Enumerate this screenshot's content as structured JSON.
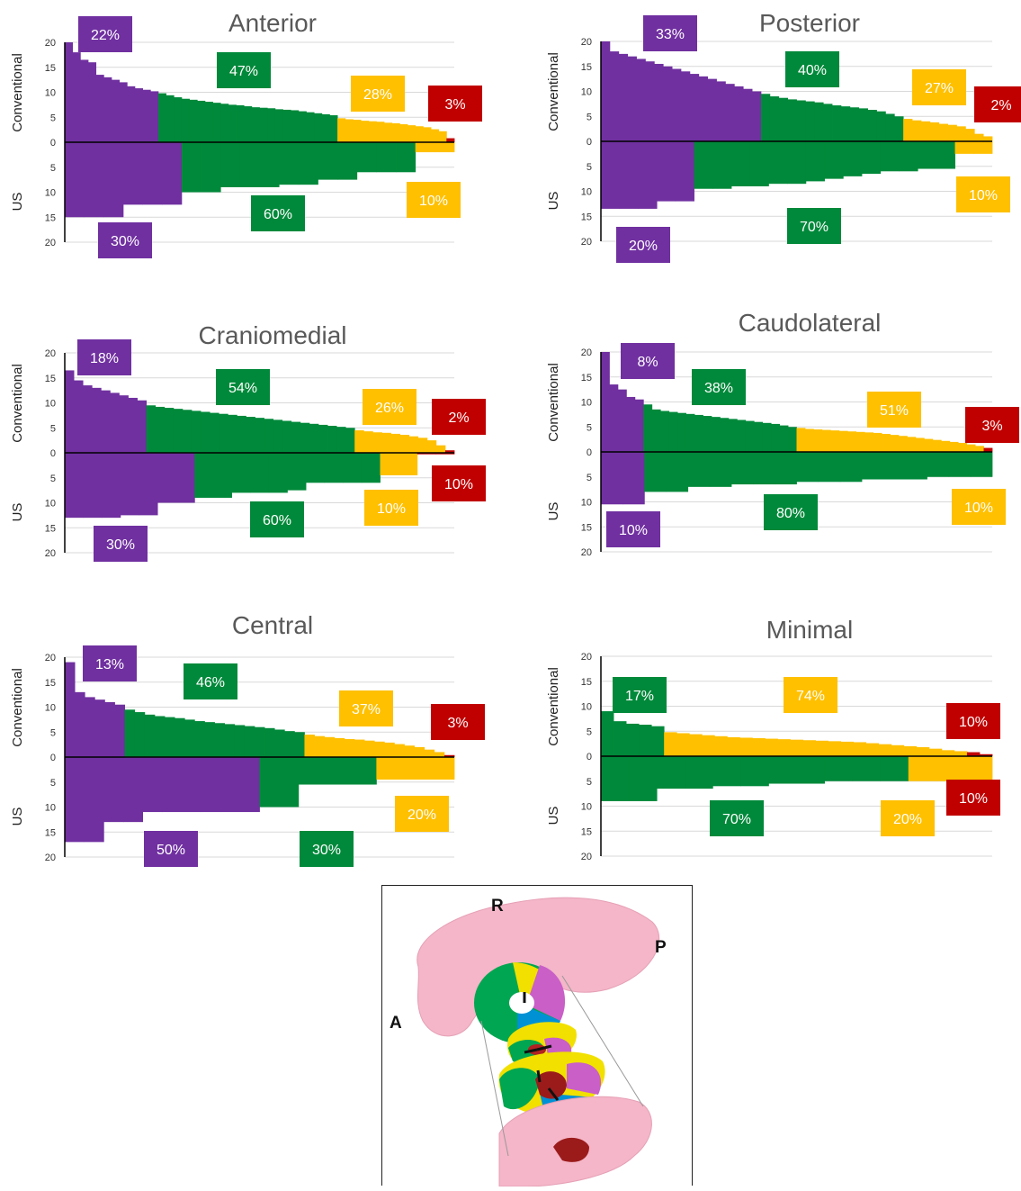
{
  "colors": {
    "purple": "#7030A0",
    "green": "#00893A",
    "yellow": "#FFC000",
    "red": "#C00000",
    "title": "#595959",
    "axis_text": "#333333",
    "grid": "#D9D9D9"
  },
  "axis_labels": {
    "top": "Conventional",
    "bottom": "US"
  },
  "chart_data": [
    {
      "type": "bar",
      "title": "Anterior",
      "ylim_top": [
        0,
        20
      ],
      "ylim_bottom": [
        0,
        20
      ],
      "yticks": [
        "20",
        "15",
        "10",
        "5",
        "0",
        "5",
        "10",
        "15",
        "20"
      ],
      "top": {
        "groups": [
          {
            "color": "purple",
            "pct": "22%",
            "values": [
              20,
              18,
              16.5,
              16,
              13.5,
              13,
              12.5,
              12,
              11.2,
              10.8,
              10.5,
              10.2
            ]
          },
          {
            "color": "green",
            "pct": "47%",
            "values": [
              9.8,
              9.4,
              9.0,
              8.7,
              8.5,
              8.3,
              8.1,
              7.9,
              7.7,
              7.5,
              7.4,
              7.2,
              7.0,
              6.9,
              6.8,
              6.6,
              6.5,
              6.4,
              6.2,
              6.0,
              5.8,
              5.6,
              5.4
            ]
          },
          {
            "color": "yellow",
            "pct": "28%",
            "values": [
              4.8,
              4.6,
              4.5,
              4.3,
              4.2,
              4.1,
              3.9,
              3.8,
              3.6,
              3.4,
              3.2,
              3.0,
              2.6,
              2.2
            ]
          },
          {
            "color": "red",
            "pct": "3%",
            "values": [
              0.8
            ]
          }
        ]
      },
      "bottom": {
        "groups": [
          {
            "color": "purple",
            "pct": "30%",
            "values": [
              15,
              15,
              15,
              12.5,
              12.5,
              12.5
            ]
          },
          {
            "color": "green",
            "pct": "60%",
            "values": [
              10,
              10,
              9,
              9,
              9,
              8.5,
              8.5,
              7.5,
              7.5,
              6,
              6,
              6
            ]
          },
          {
            "color": "yellow",
            "pct": "10%",
            "values": [
              2,
              2
            ]
          },
          {
            "color": "red",
            "pct": "",
            "values": []
          }
        ]
      }
    },
    {
      "type": "bar",
      "title": "Posterior",
      "ylim_top": [
        0,
        20
      ],
      "ylim_bottom": [
        0,
        20
      ],
      "yticks": [
        "20",
        "15",
        "10",
        "5",
        "0",
        "5",
        "10",
        "15",
        "20"
      ],
      "top": {
        "groups": [
          {
            "color": "purple",
            "pct": "33%",
            "values": [
              20,
              18,
              17.5,
              17,
              16.5,
              16,
              15.5,
              15,
              14.5,
              14,
              13.5,
              13,
              12.5,
              12,
              11.5,
              11,
              10.5,
              10
            ]
          },
          {
            "color": "green",
            "pct": "40%",
            "values": [
              9.5,
              9.0,
              8.7,
              8.4,
              8.2,
              8.0,
              7.8,
              7.5,
              7.2,
              7.0,
              6.8,
              6.6,
              6.3,
              6.0,
              5.5,
              5.0
            ]
          },
          {
            "color": "yellow",
            "pct": "27%",
            "values": [
              4.5,
              4.2,
              4.0,
              3.8,
              3.5,
              3.3,
              3.0,
              2.5,
              1.5,
              1.0
            ]
          },
          {
            "color": "red",
            "pct": "2%",
            "values": []
          }
        ]
      },
      "bottom": {
        "groups": [
          {
            "color": "purple",
            "pct": "20%",
            "values": [
              13.5,
              13.5,
              13.5,
              12,
              12
            ]
          },
          {
            "color": "green",
            "pct": "70%",
            "values": [
              9.5,
              9.5,
              9,
              9,
              8.5,
              8.5,
              8,
              7.5,
              7,
              6.5,
              6,
              6,
              5.5,
              5.5
            ]
          },
          {
            "color": "yellow",
            "pct": "10%",
            "values": [
              2.5,
              2.5
            ]
          },
          {
            "color": "red",
            "pct": "",
            "values": []
          }
        ]
      }
    },
    {
      "type": "bar",
      "title": "Craniomedial",
      "ylim_top": [
        0,
        20
      ],
      "ylim_bottom": [
        0,
        20
      ],
      "yticks": [
        "20",
        "15",
        "10",
        "5",
        "0",
        "5",
        "10",
        "15",
        "20"
      ],
      "top": {
        "groups": [
          {
            "color": "purple",
            "pct": "18%",
            "values": [
              16.5,
              14.5,
              13.5,
              13,
              12.5,
              12,
              11.5,
              11,
              10.5
            ]
          },
          {
            "color": "green",
            "pct": "54%",
            "values": [
              9.5,
              9.2,
              9.0,
              8.8,
              8.6,
              8.4,
              8.2,
              8.0,
              7.8,
              7.6,
              7.4,
              7.2,
              7.0,
              6.8,
              6.6,
              6.4,
              6.2,
              6.0,
              5.8,
              5.6,
              5.4,
              5.2,
              5.0
            ]
          },
          {
            "color": "yellow",
            "pct": "26%",
            "values": [
              4.5,
              4.3,
              4.1,
              4.0,
              3.8,
              3.6,
              3.3,
              3.0,
              2.5,
              1.5
            ]
          },
          {
            "color": "red",
            "pct": "2%",
            "values": [
              0.5
            ]
          }
        ]
      },
      "bottom": {
        "groups": [
          {
            "color": "purple",
            "pct": "30%",
            "values": [
              13,
              13,
              13,
              12.5,
              12.5,
              10,
              10
            ]
          },
          {
            "color": "green",
            "pct": "60%",
            "values": [
              9,
              9,
              8,
              8,
              8,
              7.5,
              6,
              6,
              6,
              6
            ]
          },
          {
            "color": "yellow",
            "pct": "10%",
            "values": [
              4.5,
              4.5
            ]
          },
          {
            "color": "red",
            "pct": "10%",
            "values": [
              0.3,
              0.3
            ]
          }
        ]
      }
    },
    {
      "type": "bar",
      "title": "Caudolateral",
      "ylim_top": [
        0,
        20
      ],
      "ylim_bottom": [
        0,
        20
      ],
      "yticks": [
        "20",
        "15",
        "10",
        "5",
        "0",
        "5",
        "10",
        "15",
        "20"
      ],
      "top": {
        "groups": [
          {
            "color": "purple",
            "pct": "8%",
            "values": [
              20,
              13.5,
              12.5,
              11,
              10.5
            ]
          },
          {
            "color": "green",
            "pct": "38%",
            "values": [
              9.5,
              8.5,
              8.2,
              8.0,
              7.8,
              7.6,
              7.4,
              7.2,
              7.0,
              6.8,
              6.6,
              6.4,
              6.2,
              6.0,
              5.8,
              5.6,
              5.3,
              5.0
            ]
          },
          {
            "color": "yellow",
            "pct": "51%",
            "values": [
              4.8,
              4.6,
              4.5,
              4.4,
              4.3,
              4.2,
              4.1,
              4.0,
              3.9,
              3.8,
              3.6,
              3.4,
              3.2,
              3.0,
              2.8,
              2.6,
              2.4,
              2.2,
              2.0,
              1.8,
              1.5,
              1.2
            ]
          },
          {
            "color": "red",
            "pct": "3%",
            "values": [
              0.8
            ]
          }
        ]
      },
      "bottom": {
        "groups": [
          {
            "color": "purple",
            "pct": "10%",
            "values": [
              10.5,
              10.5
            ]
          },
          {
            "color": "green",
            "pct": "80%",
            "values": [
              8,
              8,
              7,
              7,
              6.5,
              6.5,
              6.5,
              6,
              6,
              6,
              5.5,
              5.5,
              5.5,
              5,
              5,
              5
            ]
          },
          {
            "color": "yellow",
            "pct": "10%",
            "values": []
          },
          {
            "color": "red",
            "pct": "",
            "values": []
          }
        ]
      }
    },
    {
      "type": "bar",
      "title": "Central",
      "ylim_top": [
        0,
        20
      ],
      "ylim_bottom": [
        0,
        20
      ],
      "yticks": [
        "20",
        "15",
        "10",
        "5",
        "0",
        "5",
        "10",
        "15",
        "20"
      ],
      "top": {
        "groups": [
          {
            "color": "purple",
            "pct": "13%",
            "values": [
              19,
              13,
              12,
              11.5,
              11,
              10.5
            ]
          },
          {
            "color": "green",
            "pct": "46%",
            "values": [
              9.5,
              9.0,
              8.5,
              8.2,
              8.0,
              7.8,
              7.5,
              7.2,
              7.0,
              6.8,
              6.6,
              6.4,
              6.2,
              6.0,
              5.8,
              5.5,
              5.2,
              5.0
            ]
          },
          {
            "color": "yellow",
            "pct": "37%",
            "values": [
              4.5,
              4.2,
              4.0,
              3.8,
              3.6,
              3.5,
              3.3,
              3.1,
              2.9,
              2.6,
              2.3,
              2.0,
              1.5,
              1.0
            ]
          },
          {
            "color": "red",
            "pct": "3%",
            "values": [
              0.4
            ]
          }
        ]
      },
      "bottom": {
        "groups": [
          {
            "color": "purple",
            "pct": "50%",
            "values": [
              17,
              17,
              13,
              13,
              11,
              11,
              11,
              11,
              11,
              11
            ]
          },
          {
            "color": "green",
            "pct": "30%",
            "values": [
              10,
              10,
              5.5,
              5.5,
              5.5,
              5.5
            ]
          },
          {
            "color": "yellow",
            "pct": "20%",
            "values": [
              4.5,
              4.5,
              4.5,
              4.5
            ]
          },
          {
            "color": "red",
            "pct": "",
            "values": []
          }
        ]
      }
    },
    {
      "type": "bar",
      "title": "Minimal",
      "ylim_top": [
        0,
        20
      ],
      "ylim_bottom": [
        0,
        20
      ],
      "yticks": [
        "20",
        "15",
        "10",
        "5",
        "0",
        "5",
        "10",
        "15",
        "20"
      ],
      "top": {
        "groups": [
          {
            "color": "purple",
            "pct": "",
            "values": []
          },
          {
            "color": "green",
            "pct": "17%",
            "values": [
              9,
              7,
              6.5,
              6.3,
              6
            ]
          },
          {
            "color": "yellow",
            "pct": "74%",
            "values": [
              4.8,
              4.6,
              4.4,
              4.2,
              4.0,
              3.8,
              3.7,
              3.6,
              3.5,
              3.4,
              3.3,
              3.2,
              3.1,
              3.0,
              2.9,
              2.8,
              2.6,
              2.4,
              2.2,
              2.0,
              1.8,
              1.5,
              1.2,
              1.0
            ]
          },
          {
            "color": "red",
            "pct": "10%",
            "values": [
              0.8,
              0.4
            ]
          }
        ]
      },
      "bottom": {
        "groups": [
          {
            "color": "purple",
            "pct": "",
            "values": []
          },
          {
            "color": "green",
            "pct": "70%",
            "values": [
              9,
              9,
              6.5,
              6.5,
              6,
              6,
              5.5,
              5.5,
              5,
              5,
              5
            ]
          },
          {
            "color": "yellow",
            "pct": "20%",
            "values": [
              5,
              5,
              5
            ]
          },
          {
            "color": "red",
            "pct": "10%",
            "values": []
          }
        ]
      }
    }
  ],
  "figure": {
    "labels": {
      "r": "R",
      "p": "P",
      "a": "A"
    }
  }
}
